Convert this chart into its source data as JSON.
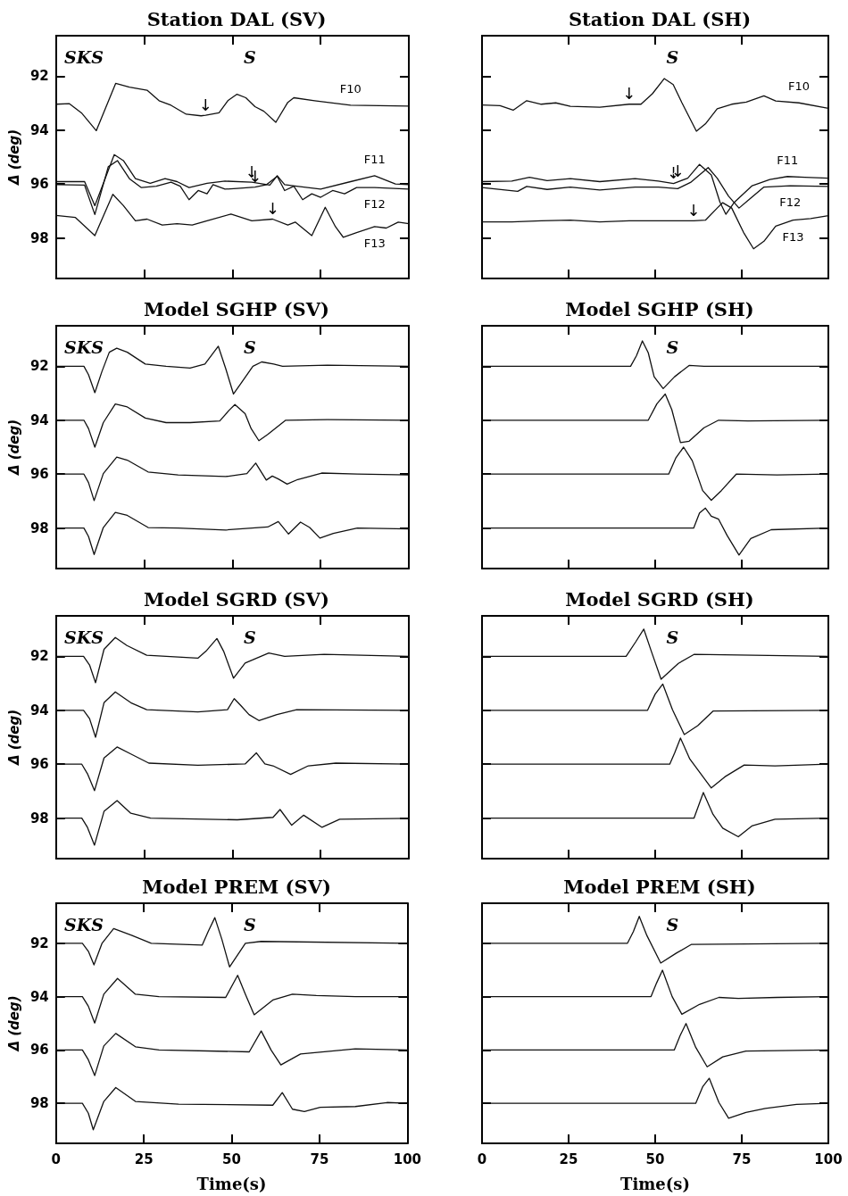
{
  "chart_data": [
    {
      "type": "line",
      "title": "Station DAL (SV)",
      "ylabel": "Δ (deg)",
      "xlim": [
        0,
        100
      ],
      "xticks": [
        0,
        25,
        50,
        75,
        100
      ],
      "ylim": [
        99.5,
        90.5
      ],
      "yticks": [
        92,
        94,
        96,
        98
      ],
      "tick_labels": "y",
      "annotations": [
        "SKS",
        "S",
        {
          "text": "↓",
          "x": 42.4,
          "y": 93.45
        },
        {
          "text": "↓",
          "x": 55.5,
          "y": 95.93
        },
        {
          "text": "↓",
          "x": 56.4,
          "y": 96.11
        },
        {
          "text": "↓",
          "x": 61.4,
          "y": 97.3
        }
      ],
      "series": [
        {
          "name": "F10",
          "color": "#111111",
          "x": [
            0,
            3.8,
            7.2,
            11.4,
            16.9,
            20.8,
            25.8,
            29.2,
            32.6,
            36.9,
            41.1,
            42.4,
            46.2,
            48.7,
            51.3,
            53.8,
            56.4,
            58.9,
            62.3,
            65.7,
            67.4,
            73.3,
            83.5,
            100
          ],
          "values": [
            93.04,
            93.02,
            93.36,
            94.02,
            92.27,
            92.41,
            92.52,
            92.91,
            93.08,
            93.41,
            93.47,
            93.45,
            93.36,
            92.91,
            92.67,
            92.8,
            93.13,
            93.3,
            93.71,
            92.97,
            92.8,
            92.91,
            93.08,
            93.11
          ]
        },
        {
          "name": "F11",
          "color": "#111111",
          "x": [
            0,
            8.1,
            11,
            13.6,
            16.5,
            19.1,
            22.5,
            26.7,
            30.9,
            34.3,
            37.7,
            42.8,
            47.9,
            55.5,
            60.6,
            62.7,
            64.8,
            68.2,
            75,
            83.5,
            90.3,
            96.2,
            100
          ],
          "values": [
            95.91,
            95.91,
            96.8,
            95.91,
            94.91,
            95.13,
            95.8,
            95.97,
            95.8,
            95.91,
            96.13,
            95.97,
            95.89,
            95.93,
            96.04,
            95.69,
            96.02,
            96.08,
            96.19,
            95.91,
            95.69,
            96,
            96.02
          ]
        },
        {
          "name": "F12",
          "color": "#111111",
          "x": [
            0,
            8.1,
            11,
            14.8,
            17.4,
            20.8,
            24.2,
            28.4,
            32.6,
            35.2,
            37.7,
            40.3,
            42.8,
            44.5,
            47.9,
            51.3,
            56.4,
            59.7,
            62.7,
            64.8,
            67.4,
            69.9,
            72.5,
            75,
            78.4,
            81.8,
            85.2,
            90.3,
            100
          ],
          "values": [
            96.02,
            96.04,
            97.13,
            95.36,
            95.13,
            95.8,
            96.13,
            96.08,
            95.93,
            96.08,
            96.58,
            96.24,
            96.36,
            96.02,
            96.19,
            96.16,
            96.11,
            96.02,
            95.71,
            96.24,
            96.08,
            96.58,
            96.36,
            96.49,
            96.24,
            96.36,
            96.13,
            96.13,
            96.19
          ]
        },
        {
          "name": "F13",
          "color": "#111111",
          "x": [
            0,
            5.5,
            11,
            16.1,
            19.1,
            22.5,
            25.8,
            30.1,
            34.3,
            38.6,
            42.8,
            49.6,
            55.5,
            61.4,
            65.7,
            67.8,
            72.5,
            76.3,
            79.2,
            81.4,
            85.2,
            90.3,
            93.6,
            97,
            100
          ],
          "values": [
            97.16,
            97.24,
            97.91,
            96.38,
            96.8,
            97.36,
            97.3,
            97.52,
            97.47,
            97.52,
            97.36,
            97.11,
            97.36,
            97.3,
            97.52,
            97.41,
            97.91,
            96.86,
            97.58,
            97.97,
            97.8,
            97.58,
            97.63,
            97.41,
            97.47
          ]
        }
      ]
    },
    {
      "type": "line",
      "title": "Station DAL (SH)",
      "xlim": [
        0,
        100
      ],
      "xticks": [
        0,
        25,
        50,
        75,
        100
      ],
      "ylim": [
        99.5,
        90.5
      ],
      "yticks": [
        92,
        94,
        96,
        98
      ],
      "tick_labels": false,
      "annotations": [
        "S",
        {
          "text": "↓",
          "x": 42.5,
          "y": 93.04
        },
        {
          "text": "↓",
          "x": 55.3,
          "y": 95.98
        },
        {
          "text": "↓",
          "x": 56.5,
          "y": 95.92
        },
        {
          "text": "↓",
          "x": 61.1,
          "y": 97.36
        }
      ],
      "series": [
        {
          "name": "F10",
          "color": "#111111",
          "x": [
            0,
            5.2,
            9,
            12.9,
            17.1,
            21.3,
            25.5,
            34,
            42.5,
            45.9,
            49.2,
            52.6,
            55.2,
            57.7,
            61.9,
            64.5,
            67.9,
            72.1,
            76.3,
            81.4,
            84.8,
            91.5,
            100
          ],
          "values": [
            93.07,
            93.09,
            93.26,
            92.91,
            93.04,
            92.99,
            93.12,
            93.15,
            93.04,
            93.04,
            92.65,
            92.09,
            92.31,
            92.98,
            94.04,
            93.77,
            93.21,
            93.04,
            92.96,
            92.73,
            92.92,
            92.99,
            93.19
          ]
        },
        {
          "name": "F11",
          "color": "#111111",
          "x": [
            0,
            8.6,
            13.7,
            18.8,
            25.5,
            34,
            44.2,
            50.9,
            55.3,
            56.5,
            59.4,
            62.8,
            66.2,
            68.7,
            70.4,
            72.9,
            78,
            83.1,
            88.2,
            93.2,
            100
          ],
          "values": [
            95.91,
            95.89,
            95.75,
            95.87,
            95.8,
            95.91,
            95.8,
            95.89,
            95.98,
            95.92,
            95.78,
            95.27,
            95.66,
            96.67,
            97.12,
            96.67,
            96.06,
            95.83,
            95.72,
            95.75,
            95.78
          ]
        },
        {
          "name": "F12",
          "color": "#111111",
          "x": [
            0,
            10.3,
            12.9,
            18.8,
            25.5,
            34,
            44.2,
            50.9,
            56.5,
            60.2,
            65.3,
            67.9,
            71.2,
            74.2,
            77.2,
            81.4,
            89,
            100
          ],
          "values": [
            96.13,
            96.27,
            96.09,
            96.2,
            96.11,
            96.22,
            96.11,
            96.11,
            96.17,
            95.94,
            95.39,
            95.78,
            96.45,
            96.89,
            96.56,
            96.11,
            96.06,
            96.09
          ]
        },
        {
          "name": "F13",
          "color": "#111111",
          "x": [
            0,
            8.6,
            17.1,
            25.5,
            34,
            42.5,
            61.1,
            64.5,
            67.9,
            69.5,
            72.1,
            75.5,
            78.4,
            81.4,
            84.8,
            89.8,
            94.9,
            100
          ],
          "values": [
            97.4,
            97.4,
            97.36,
            97.34,
            97.4,
            97.36,
            97.36,
            97.34,
            96.89,
            96.69,
            96.89,
            97.79,
            98.4,
            98.12,
            97.56,
            97.34,
            97.28,
            97.17
          ]
        }
      ]
    },
    {
      "type": "line",
      "title": "Model SGHP (SV)",
      "ylabel": "Δ (deg)",
      "xlim": [
        0,
        100
      ],
      "xticks": [
        0,
        25,
        50,
        75,
        100
      ],
      "ylim": [
        99.5,
        90.5
      ],
      "yticks": [
        92,
        94,
        96,
        98
      ],
      "tick_labels": "y",
      "annotations": [
        "SKS",
        "S"
      ],
      "series": [
        {
          "color": "#111111",
          "x": [
            0,
            7.9,
            9.2,
            11,
            13,
            15.1,
            17.2,
            20.2,
            25.3,
            31.2,
            38,
            42.2,
            46,
            48.1,
            50.3,
            52.4,
            55.8,
            58.3,
            61.7,
            64.2,
            76.9,
            100
          ],
          "values": [
            92,
            92,
            92.31,
            92.98,
            92.2,
            91.48,
            91.33,
            91.48,
            91.92,
            92,
            92.07,
            91.92,
            91.26,
            92.09,
            93.03,
            92.64,
            92,
            91.84,
            91.92,
            92,
            91.96,
            92
          ]
        },
        {
          "color": "#111111",
          "x": [
            0,
            7.9,
            9.2,
            11,
            13.4,
            16.8,
            20.2,
            25.3,
            31.2,
            38,
            46.4,
            49,
            50.7,
            53.6,
            55.3,
            57.5,
            60,
            65.1,
            76.9,
            100
          ],
          "values": [
            94,
            94,
            94.31,
            95,
            94.09,
            93.4,
            93.51,
            93.92,
            94.09,
            94.09,
            94.03,
            93.64,
            93.42,
            93.76,
            94.31,
            94.76,
            94.53,
            94,
            93.98,
            94
          ]
        },
        {
          "color": "#111111",
          "x": [
            0,
            7.9,
            9.2,
            10.8,
            13.4,
            17.2,
            20.2,
            26.1,
            34.6,
            48.1,
            54.1,
            56.6,
            59.6,
            61.3,
            63,
            65.5,
            68.5,
            75.3,
            85.4,
            100
          ],
          "values": [
            96,
            96,
            96.31,
            96.98,
            95.98,
            95.37,
            95.48,
            95.92,
            96.03,
            96.09,
            95.98,
            95.59,
            96.22,
            96.07,
            96.18,
            96.37,
            96.2,
            95.96,
            96,
            96.03
          ]
        },
        {
          "color": "#111111",
          "x": [
            0,
            7.9,
            9.2,
            10.8,
            13.4,
            16.8,
            20.2,
            26.1,
            34.6,
            48.1,
            60,
            63,
            65.9,
            69.3,
            71.9,
            74.8,
            78.6,
            85.4,
            100
          ],
          "values": [
            98,
            98,
            98.31,
            98.98,
            97.98,
            97.42,
            97.53,
            97.98,
            98,
            98.07,
            97.96,
            97.76,
            98.22,
            97.78,
            97.98,
            98.37,
            98.2,
            98,
            98.03
          ]
        }
      ]
    },
    {
      "type": "line",
      "title": "Model SGHP (SH)",
      "xlim": [
        0,
        100
      ],
      "xticks": [
        0,
        25,
        50,
        75,
        100
      ],
      "ylim": [
        99.5,
        90.5
      ],
      "yticks": [
        92,
        94,
        96,
        98
      ],
      "tick_labels": false,
      "annotations": [
        "S"
      ],
      "series": [
        {
          "color": "#111111",
          "x": [
            0,
            42.9,
            44.6,
            46.3,
            48,
            49.7,
            52.3,
            55.6,
            59.8,
            64.1,
            100
          ],
          "values": [
            92,
            92,
            91.61,
            91.06,
            91.5,
            92.39,
            92.83,
            92.39,
            91.97,
            92,
            92
          ]
        },
        {
          "color": "#111111",
          "x": [
            0,
            48,
            50.5,
            52.9,
            54.8,
            57.3,
            59.8,
            64.1,
            68.3,
            76.8,
            100
          ],
          "values": [
            94,
            94,
            93.39,
            93.03,
            93.61,
            94.83,
            94.78,
            94.28,
            94,
            94.03,
            94
          ]
        },
        {
          "color": "#111111",
          "x": [
            0,
            53.9,
            56,
            58.2,
            60.7,
            63.7,
            66.2,
            69.1,
            73.4,
            85.2,
            100
          ],
          "values": [
            96,
            96,
            95.39,
            95,
            95.5,
            96.61,
            96.97,
            96.61,
            96,
            96.03,
            96
          ]
        },
        {
          "color": "#111111",
          "x": [
            0,
            61.1,
            62.8,
            64.5,
            66.2,
            68.3,
            70.8,
            74.2,
            77.6,
            83.5,
            100
          ],
          "values": [
            98,
            98,
            97.44,
            97.26,
            97.56,
            97.67,
            98.28,
            99,
            98.39,
            98.06,
            98
          ]
        }
      ]
    },
    {
      "type": "line",
      "title": "Model SGRD (SV)",
      "ylabel": "Δ (deg)",
      "xlim": [
        0,
        100
      ],
      "xticks": [
        0,
        25,
        50,
        75,
        100
      ],
      "ylim": [
        99.5,
        90.5
      ],
      "yticks": [
        92,
        94,
        96,
        98
      ],
      "tick_labels": "y",
      "annotations": [
        "SKS",
        "S"
      ],
      "series": [
        {
          "color": "#111111",
          "x": [
            0,
            7.8,
            9.5,
            11.2,
            13.6,
            16.8,
            20.1,
            25.7,
            40.2,
            42.5,
            45.6,
            47.5,
            50.3,
            53.6,
            60.3,
            64.8,
            76,
            100
          ],
          "values": [
            92,
            92,
            92.32,
            92.98,
            91.74,
            91.3,
            91.6,
            91.96,
            92.07,
            91.81,
            91.34,
            91.81,
            92.81,
            92.25,
            91.88,
            92,
            91.93,
            92
          ]
        },
        {
          "color": "#111111",
          "x": [
            0,
            7.8,
            9.5,
            11.2,
            13.6,
            16.8,
            21.2,
            25.7,
            40.2,
            48.6,
            50.5,
            52.5,
            54.7,
            57.5,
            62.6,
            68.2,
            100
          ],
          "values": [
            94,
            94,
            94.31,
            95,
            93.72,
            93.32,
            93.72,
            93.98,
            94.06,
            93.98,
            93.57,
            93.84,
            94.16,
            94.38,
            94.16,
            93.98,
            94
          ]
        },
        {
          "color": "#111111",
          "x": [
            0,
            7.3,
            8.9,
            10.9,
            13.6,
            17.3,
            21.2,
            26.3,
            40.2,
            53.6,
            56.8,
            59.2,
            61.5,
            66.5,
            71.5,
            79.3,
            100
          ],
          "values": [
            96,
            96,
            96.35,
            96.98,
            95.77,
            95.36,
            95.62,
            95.96,
            96.04,
            95.99,
            95.58,
            95.99,
            96.06,
            96.38,
            96.06,
            95.96,
            96
          ]
        },
        {
          "color": "#111111",
          "x": [
            0,
            7.3,
            8.9,
            10.9,
            13.6,
            17.3,
            21.2,
            26.8,
            51.4,
            61.5,
            63.5,
            66.8,
            70.2,
            75.4,
            80.4,
            100
          ],
          "values": [
            98,
            98,
            98.34,
            99,
            97.75,
            97.35,
            97.82,
            98,
            98.06,
            97.97,
            97.68,
            98.26,
            97.89,
            98.34,
            98.04,
            98.01
          ]
        }
      ]
    },
    {
      "type": "line",
      "title": "Model SGRD (SH)",
      "xlim": [
        0,
        100
      ],
      "xticks": [
        0,
        25,
        50,
        75,
        100
      ],
      "ylim": [
        99.5,
        90.5
      ],
      "yticks": [
        92,
        94,
        96,
        98
      ],
      "tick_labels": false,
      "annotations": [
        "S"
      ],
      "series": [
        {
          "color": "#111111",
          "x": [
            0,
            41.6,
            44.4,
            46.7,
            48.9,
            51.7,
            56.7,
            61.2,
            100
          ],
          "values": [
            92,
            92,
            91.46,
            90.99,
            91.82,
            92.85,
            92.26,
            91.93,
            92
          ]
        },
        {
          "color": "#111111",
          "x": [
            0,
            47.8,
            50,
            52.2,
            55,
            58.4,
            62.3,
            66.7,
            100
          ],
          "values": [
            94,
            94,
            93.4,
            93.03,
            93.98,
            94.9,
            94.57,
            94.03,
            94
          ]
        },
        {
          "color": "#111111",
          "x": [
            0,
            54.2,
            55.6,
            57.3,
            60,
            66.2,
            70.1,
            75.7,
            84.6,
            100
          ],
          "values": [
            96,
            96,
            95.59,
            95.03,
            95.81,
            96.88,
            96.47,
            96.03,
            96.06,
            96
          ]
        },
        {
          "color": "#111111",
          "x": [
            0,
            61.2,
            63.9,
            66.7,
            69.5,
            74,
            77.9,
            84.6,
            100
          ],
          "values": [
            98,
            98,
            97.05,
            97.86,
            98.37,
            98.69,
            98.29,
            98.04,
            98
          ]
        }
      ]
    },
    {
      "type": "line",
      "title": "Model PREM (SV)",
      "xlabel": "Time(s)",
      "ylabel": "Δ (deg)",
      "xlim": [
        0,
        100
      ],
      "xticks": [
        0,
        25,
        50,
        75,
        100
      ],
      "ylim": [
        99.5,
        90.5
      ],
      "yticks": [
        92,
        94,
        96,
        98
      ],
      "annotations": [
        "SKS",
        "S"
      ],
      "series": [
        {
          "color": "#111111",
          "x": [
            0,
            7.5,
            9.2,
            10.8,
            13.1,
            16.4,
            21.5,
            27.1,
            41.6,
            43.3,
            45.2,
            47.2,
            49.4,
            53.9,
            58.4,
            100
          ],
          "values": [
            92,
            92,
            92.3,
            92.81,
            92,
            91.45,
            91.7,
            92,
            92.07,
            91.56,
            91.04,
            91.85,
            92.89,
            92,
            91.93,
            92
          ]
        },
        {
          "color": "#111111",
          "x": [
            0,
            7.5,
            9.2,
            11,
            13.6,
            17.5,
            22.6,
            29.3,
            48.3,
            51.7,
            53.9,
            56.4,
            61.7,
            67.3,
            74.1,
            85.2,
            100
          ],
          "values": [
            94,
            94,
            94.36,
            94.99,
            93.91,
            93.32,
            93.91,
            94,
            94.03,
            93.2,
            93.91,
            94.68,
            94.13,
            93.91,
            93.96,
            94,
            94
          ]
        },
        {
          "color": "#111111",
          "x": [
            0,
            7.5,
            9.2,
            11,
            13.6,
            17,
            22.6,
            29.3,
            55,
            58.4,
            61.2,
            64,
            69.6,
            85.2,
            100
          ],
          "values": [
            96,
            96,
            96.37,
            96.96,
            95.85,
            95.38,
            95.88,
            96,
            96.07,
            95.29,
            96,
            96.56,
            96.15,
            95.96,
            96
          ]
        },
        {
          "color": "#111111",
          "x": [
            0,
            7.5,
            9.2,
            10.6,
            13.6,
            17,
            22.6,
            34.9,
            61.7,
            64.4,
            67.3,
            70.7,
            75.2,
            85.2,
            94.2,
            100
          ],
          "values": [
            98,
            98,
            98.37,
            98.99,
            97.93,
            97.41,
            97.93,
            98.03,
            98.07,
            97.6,
            98.22,
            98.31,
            98.15,
            98.12,
            97.97,
            98
          ]
        }
      ]
    },
    {
      "type": "line",
      "title": "Model PREM (SH)",
      "xlabel": "Time(s)",
      "xlim": [
        0,
        100
      ],
      "xticks": [
        0,
        25,
        50,
        75,
        100
      ],
      "ylim": [
        99.5,
        90.5
      ],
      "yticks": [
        92,
        94,
        96,
        98
      ],
      "tick_labels": "x",
      "annotations": [
        "S"
      ],
      "series": [
        {
          "color": "#111111",
          "x": [
            0,
            42,
            43.7,
            45.4,
            47.6,
            51.6,
            56.1,
            60.5,
            100
          ],
          "values": [
            92,
            92,
            91.56,
            90.99,
            91.71,
            92.74,
            92.37,
            92.04,
            92
          ]
        },
        {
          "color": "#111111",
          "x": [
            0,
            48.8,
            50.4,
            52.1,
            54.9,
            57.7,
            62.8,
            68.4,
            74,
            85.2,
            100
          ],
          "values": [
            94,
            94,
            93.49,
            93.01,
            94,
            94.66,
            94.29,
            94.03,
            94.07,
            94.03,
            94
          ]
        },
        {
          "color": "#111111",
          "x": [
            0,
            55.5,
            57.2,
            58.9,
            61.7,
            65,
            69.5,
            76.2,
            100
          ],
          "values": [
            96,
            96,
            95.46,
            95.01,
            95.9,
            96.63,
            96.26,
            96.04,
            96
          ]
        },
        {
          "color": "#111111",
          "x": [
            0,
            61.7,
            63.7,
            65.6,
            68.4,
            71.2,
            76.2,
            81.8,
            90.8,
            100
          ],
          "values": [
            98,
            98,
            97.38,
            97.06,
            97.97,
            98.56,
            98.34,
            98.19,
            98.04,
            98
          ]
        }
      ]
    }
  ]
}
